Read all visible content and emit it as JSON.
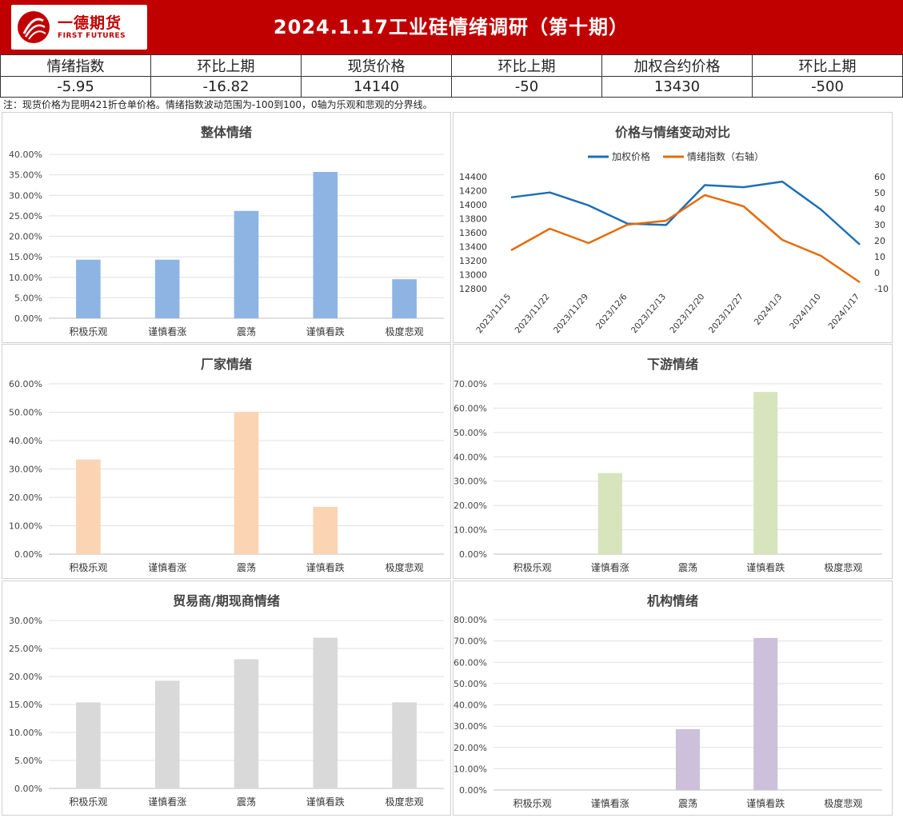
{
  "header": {
    "logo_cn": "一德期货",
    "logo_en": "FIRST FUTURES",
    "title": "2024.1.17工业硅情绪调研（第十期）"
  },
  "summary": {
    "headers": [
      "情绪指数",
      "环比上期",
      "现货价格",
      "环比上期",
      "加权合约价格",
      "环比上期"
    ],
    "values": [
      "-5.95",
      "-16.82",
      "14140",
      "-50",
      "13430",
      "-500"
    ]
  },
  "note": "注：现货价格为昆明421折仓单价格。情绪指数波动范围为-100到100，0轴为乐观和悲观的分界线。",
  "colors": {
    "overall": "#8eb4e3",
    "factory": "#fbd4b4",
    "downstream": "#d7e4bc",
    "trader": "#d9d9d9",
    "institution": "#ccc0da",
    "price_line": "#1f6eb5",
    "sentiment_line": "#e36c0a"
  },
  "chart_data": [
    {
      "id": "overall",
      "type": "bar",
      "title": "整体情绪",
      "categories": [
        "积极乐观",
        "谨慎看涨",
        "震荡",
        "谨慎看跌",
        "极度悲观"
      ],
      "values": [
        14.29,
        14.29,
        26.19,
        35.71,
        9.52
      ],
      "ylim": [
        0,
        40
      ],
      "yticks": [
        0,
        5,
        10,
        15,
        20,
        25,
        30,
        35,
        40
      ],
      "tick_labels": [
        "0.00%",
        "5.00%",
        "10.00%",
        "15.00%",
        "20.00%",
        "25.00%",
        "30.00%",
        "35.00%",
        "40.00%"
      ],
      "color": "#8eb4e3",
      "grid": true
    },
    {
      "id": "price_vs_sentiment",
      "type": "line",
      "title": "价格与情绪变动对比",
      "x": [
        "2023/11/15",
        "2023/11/22",
        "2023/11/29",
        "2023/12/6",
        "2023/12/13",
        "2023/12/20",
        "2023/12/27",
        "2024/1/3",
        "2024/1/10",
        "2024/1/17"
      ],
      "series": [
        {
          "name": "加权价格",
          "axis": "left",
          "color": "#1f6eb5",
          "values": [
            14105,
            14175,
            13990,
            13730,
            13710,
            14280,
            14250,
            14330,
            13930,
            13430
          ]
        },
        {
          "name": "情绪指数（右轴）",
          "axis": "right",
          "color": "#e36c0a",
          "values": [
            14,
            27.5,
            18.5,
            30,
            32.5,
            48.5,
            41.5,
            20.5,
            10.5,
            -6
          ]
        }
      ],
      "ylim_left": [
        12800,
        14400
      ],
      "yticks_left": [
        12800,
        13000,
        13200,
        13400,
        13600,
        13800,
        14000,
        14200,
        14400
      ],
      "ylim_right": [
        -10,
        60
      ],
      "yticks_right": [
        -10,
        0,
        10,
        20,
        30,
        40,
        50,
        60
      ],
      "legend": "top",
      "grid": false
    },
    {
      "id": "factory",
      "type": "bar",
      "title": "厂家情绪",
      "categories": [
        "积极乐观",
        "谨慎看涨",
        "震荡",
        "谨慎看跌",
        "极度悲观"
      ],
      "values": [
        33.33,
        0,
        50,
        16.67,
        0
      ],
      "ylim": [
        0,
        60
      ],
      "yticks": [
        0,
        10,
        20,
        30,
        40,
        50,
        60
      ],
      "tick_labels": [
        "0.00%",
        "10.00%",
        "20.00%",
        "30.00%",
        "40.00%",
        "50.00%",
        "60.00%"
      ],
      "color": "#fbd4b4",
      "grid": true
    },
    {
      "id": "downstream",
      "type": "bar",
      "title": "下游情绪",
      "categories": [
        "积极乐观",
        "谨慎看涨",
        "震荡",
        "谨慎看跌",
        "极度悲观"
      ],
      "values": [
        0,
        33.33,
        0,
        66.67,
        0
      ],
      "ylim": [
        0,
        70
      ],
      "yticks": [
        0,
        10,
        20,
        30,
        40,
        50,
        60,
        70
      ],
      "tick_labels": [
        "0.00%",
        "10.00%",
        "20.00%",
        "30.00%",
        "40.00%",
        "50.00%",
        "60.00%",
        "70.00%"
      ],
      "color": "#d7e4bc",
      "grid": true
    },
    {
      "id": "trader",
      "type": "bar",
      "title": "贸易商/期现商情绪",
      "categories": [
        "积极乐观",
        "谨慎看涨",
        "震荡",
        "谨慎看跌",
        "极度悲观"
      ],
      "values": [
        15.38,
        19.23,
        23.08,
        26.92,
        15.38
      ],
      "ylim": [
        0,
        30
      ],
      "yticks": [
        0,
        5,
        10,
        15,
        20,
        25,
        30
      ],
      "tick_labels": [
        "0.00%",
        "5.00%",
        "10.00%",
        "15.00%",
        "20.00%",
        "25.00%",
        "30.00%"
      ],
      "color": "#d9d9d9",
      "grid": true
    },
    {
      "id": "institution",
      "type": "bar",
      "title": "机构情绪",
      "categories": [
        "积极乐观",
        "谨慎看涨",
        "震荡",
        "谨慎看跌",
        "极度悲观"
      ],
      "values": [
        0,
        0,
        28.57,
        71.43,
        0
      ],
      "ylim": [
        0,
        80
      ],
      "yticks": [
        0,
        10,
        20,
        30,
        40,
        50,
        60,
        70,
        80
      ],
      "tick_labels": [
        "0.00%",
        "10.00%",
        "20.00%",
        "30.00%",
        "40.00%",
        "50.00%",
        "60.00%",
        "70.00%",
        "80.00%"
      ],
      "color": "#ccc0da",
      "grid": true
    }
  ]
}
